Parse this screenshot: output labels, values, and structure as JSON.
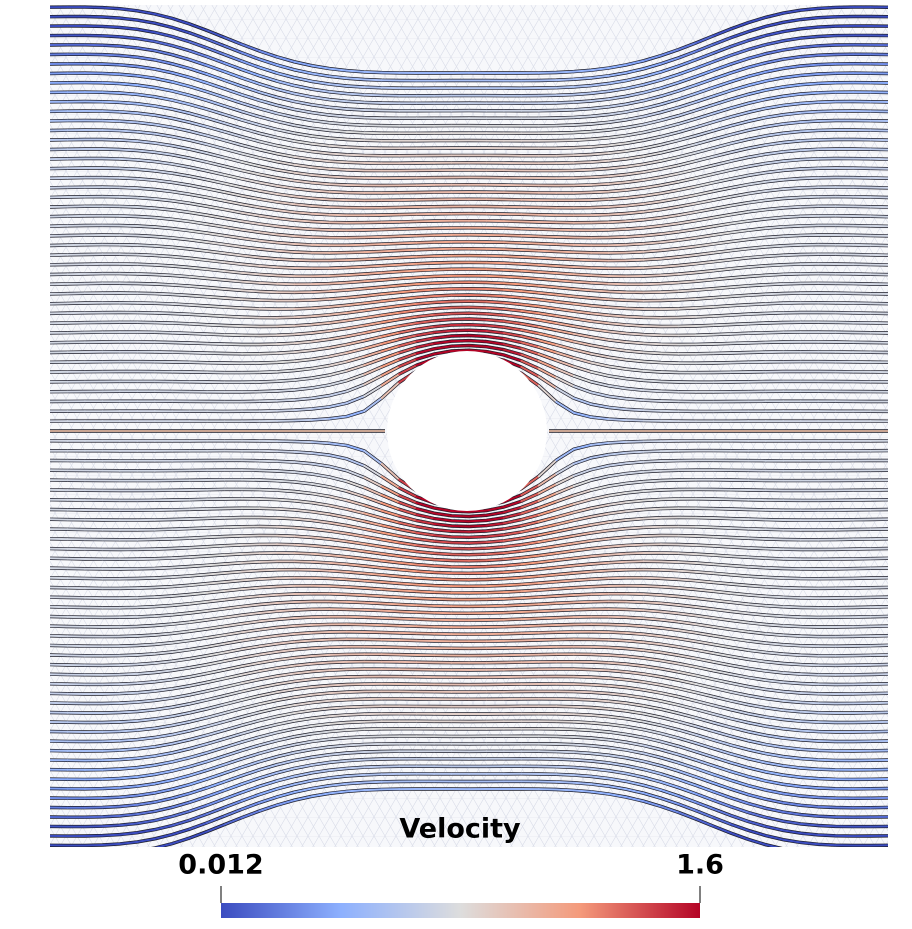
{
  "colorbar": {
    "title": "Velocity",
    "min": 0.012,
    "max": 1.6
  }
}
